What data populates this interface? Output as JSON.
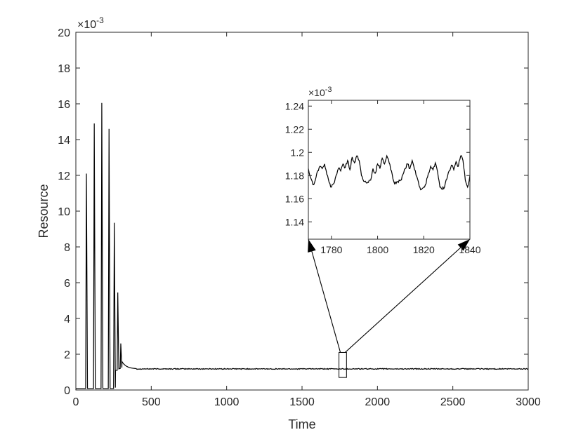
{
  "chart_data": [
    {
      "type": "line",
      "title": "",
      "xlabel": "Time",
      "ylabel": "Resource",
      "y_exponent_label": "×10",
      "y_exponent_power": "-3",
      "xlim": [
        0,
        3000
      ],
      "ylim": [
        0,
        20
      ],
      "x_ticks": [
        0,
        500,
        1000,
        1500,
        2000,
        2500,
        3000
      ],
      "x_tick_labels": [
        "0",
        "500",
        "1000",
        "1500",
        "2000",
        "2500",
        "3000"
      ],
      "y_ticks": [
        0,
        2,
        4,
        6,
        8,
        10,
        12,
        14,
        16,
        18,
        20
      ],
      "y_tick_labels": [
        "0",
        "2",
        "4",
        "6",
        "8",
        "10",
        "12",
        "14",
        "16",
        "18",
        "20"
      ],
      "grid": false,
      "line_color": "#000000",
      "peaks": [
        {
          "x": 70,
          "y": 12.1
        },
        {
          "x": 122,
          "y": 14.9
        },
        {
          "x": 172,
          "y": 16.05
        },
        {
          "x": 220,
          "y": 14.6
        },
        {
          "x": 255,
          "y": 9.35
        },
        {
          "x": 278,
          "y": 5.45
        },
        {
          "x": 298,
          "y": 2.6
        }
      ],
      "steady_state": 1.18,
      "zoom_box": {
        "x": [
          1745,
          1795
        ],
        "y": [
          0.7,
          2.1
        ]
      }
    },
    {
      "type": "line",
      "title": "",
      "xlabel": "",
      "ylabel": "",
      "y_exponent_label": "×10",
      "y_exponent_power": "-3",
      "xlim": [
        1770,
        1840
      ],
      "ylim": [
        1.125,
        1.245
      ],
      "x_ticks": [
        1780,
        1800,
        1820,
        1840
      ],
      "x_tick_labels": [
        "1780",
        "1800",
        "1820",
        "1840"
      ],
      "y_ticks": [
        1.14,
        1.16,
        1.18,
        1.2,
        1.22,
        1.24
      ],
      "y_tick_labels": [
        "1.14",
        "1.16",
        "1.18",
        "1.2",
        "1.22",
        "1.24"
      ],
      "grid": false,
      "line_color": "#000000",
      "x": [
        1770,
        1771,
        1772,
        1773,
        1774,
        1775,
        1776,
        1777,
        1778,
        1779,
        1780,
        1781,
        1782,
        1783,
        1784,
        1785,
        1786,
        1787,
        1788,
        1789,
        1790,
        1791,
        1792,
        1793,
        1794,
        1795,
        1796,
        1797,
        1798,
        1799,
        1800,
        1801,
        1802,
        1803,
        1804,
        1805,
        1806,
        1807,
        1808,
        1809,
        1810,
        1811,
        1812,
        1813,
        1814,
        1815,
        1816,
        1817,
        1818,
        1819,
        1820,
        1821,
        1822,
        1823,
        1824,
        1825,
        1826,
        1827,
        1828,
        1829,
        1830,
        1831,
        1832,
        1833,
        1834,
        1835,
        1836,
        1837,
        1838,
        1839,
        1840
      ],
      "y": [
        1.186,
        1.178,
        1.172,
        1.176,
        1.184,
        1.188,
        1.186,
        1.19,
        1.181,
        1.174,
        1.17,
        1.173,
        1.18,
        1.186,
        1.184,
        1.19,
        1.187,
        1.193,
        1.185,
        1.196,
        1.191,
        1.197,
        1.193,
        1.18,
        1.175,
        1.174,
        1.174,
        1.176,
        1.186,
        1.182,
        1.19,
        1.186,
        1.195,
        1.19,
        1.197,
        1.191,
        1.184,
        1.175,
        1.173,
        1.174,
        1.176,
        1.181,
        1.186,
        1.19,
        1.186,
        1.193,
        1.185,
        1.179,
        1.171,
        1.168,
        1.17,
        1.173,
        1.182,
        1.188,
        1.185,
        1.191,
        1.183,
        1.17,
        1.168,
        1.17,
        1.177,
        1.184,
        1.189,
        1.185,
        1.192,
        1.188,
        1.197,
        1.193,
        1.176,
        1.17,
        1.18
      ]
    }
  ]
}
